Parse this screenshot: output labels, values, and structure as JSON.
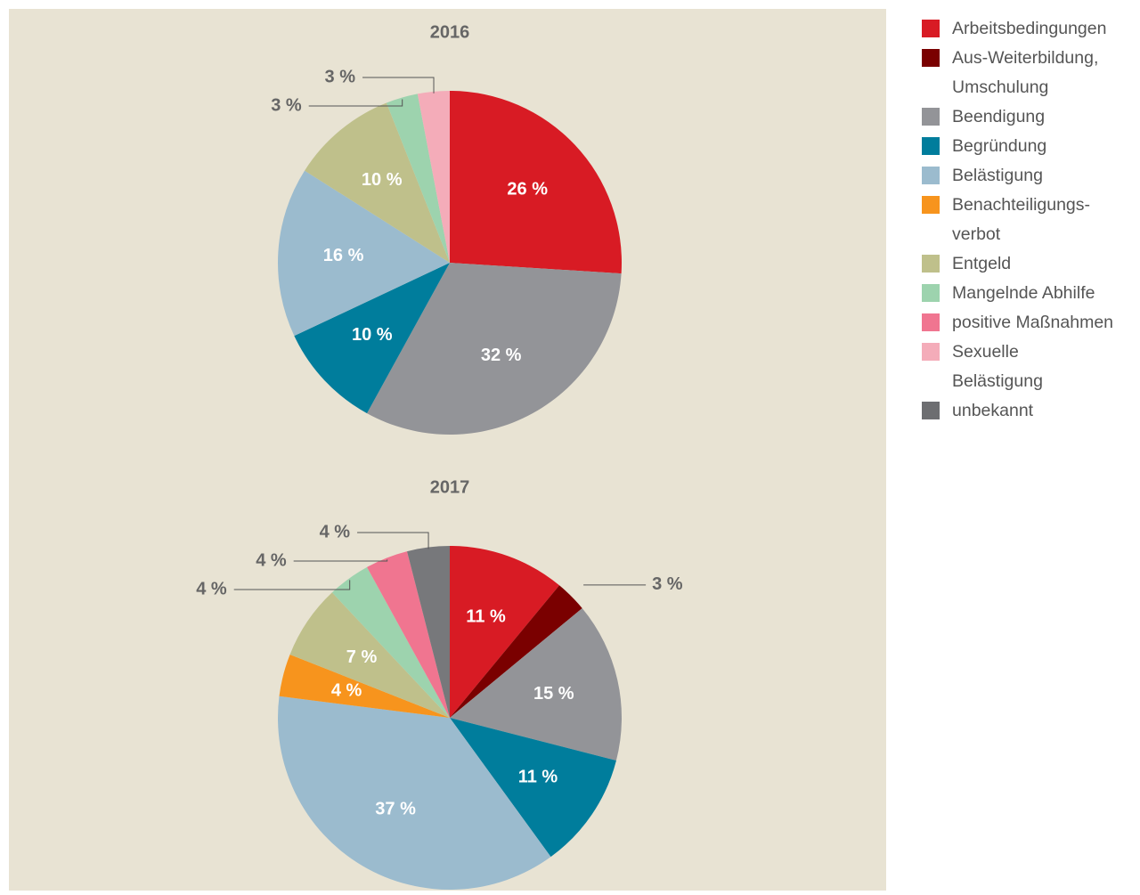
{
  "chart_data": [
    {
      "type": "pie",
      "title": "2016",
      "categories": [
        "Arbeitsbedingungen",
        "Beendigung",
        "Begründung",
        "Belästigung",
        "Entgeld",
        "Mangelnde Abhilfe",
        "Sexuelle Belästigung"
      ],
      "values": [
        26,
        32,
        10,
        16,
        10,
        3,
        3
      ],
      "value_labels": [
        "26 %",
        "32 %",
        "10 %",
        "16 %",
        "10 %",
        "3 %",
        "3 %"
      ],
      "colors": [
        "#d81b24",
        "#939498",
        "#007d9c",
        "#9bbbce",
        "#bfc08b",
        "#9dd3ae",
        "#f4acb9"
      ]
    },
    {
      "type": "pie",
      "title": "2017",
      "categories": [
        "Arbeitsbedingungen",
        "Aus-Weiterbildung, Umschulung",
        "Beendigung",
        "Begründung",
        "Belästigung",
        "Benachteiligungsverbot",
        "Entgeld",
        "Mangelnde Abhilfe",
        "positive Maßnahmen",
        "unbekannt"
      ],
      "values": [
        11,
        3,
        15,
        11,
        37,
        4,
        7,
        4,
        4,
        4
      ],
      "value_labels": [
        "11 %",
        "3 %",
        "15 %",
        "11 %",
        "37 %",
        "4 %",
        "7 %",
        "4 %",
        "4 %",
        "4 %"
      ],
      "colors": [
        "#d81b24",
        "#7a0000",
        "#939498",
        "#007d9c",
        "#9bbbce",
        "#f7941d",
        "#bfc08b",
        "#9dd3ae",
        "#f07590",
        "#77787b"
      ]
    }
  ],
  "legend": {
    "items": [
      {
        "name": "Arbeitsbedingungen",
        "color": "#d81b24"
      },
      {
        "name": "Aus-Weiterbildung, Umschulung",
        "color": "#7a0000"
      },
      {
        "name": "Beendigung",
        "color": "#939498"
      },
      {
        "name": "Begründung",
        "color": "#007d9c"
      },
      {
        "name": "Belästigung",
        "color": "#9bbbce"
      },
      {
        "name": "Benachteiligungs-verbot",
        "color": "#f7941d"
      },
      {
        "name": "Entgeld",
        "color": "#bfc08b"
      },
      {
        "name": "Mangelnde Abhilfe",
        "color": "#9dd3ae"
      },
      {
        "name": "positive Maßnahmen",
        "color": "#f07590"
      },
      {
        "name": "Sexuelle Belästigung",
        "color": "#f4acb9"
      },
      {
        "name": "unbekannt",
        "color": "#6d6e71"
      }
    ]
  }
}
